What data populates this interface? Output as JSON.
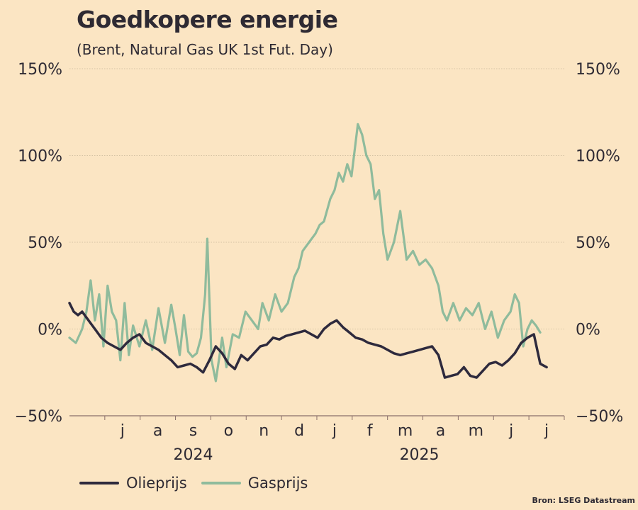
{
  "chart_data": {
    "type": "line",
    "title": "Goedkopere energie",
    "subtitle": "(Brent, Natural Gas UK 1st Fut. Day)",
    "source": "Bron: LSEG Datastream",
    "ylim": [
      -50,
      150
    ],
    "yticks": [
      {
        "value": 150,
        "label": "150%"
      },
      {
        "value": 100,
        "label": "100%"
      },
      {
        "value": 50,
        "label": "50%"
      },
      {
        "value": 0,
        "label": "0%"
      },
      {
        "value": -50,
        "label": "−50%"
      }
    ],
    "xlim": [
      2024.375,
      2025.5417
    ],
    "month_labels": [
      {
        "x": 2024.5,
        "label": "j"
      },
      {
        "x": 2024.5833,
        "label": "a"
      },
      {
        "x": 2024.6667,
        "label": "s"
      },
      {
        "x": 2024.75,
        "label": "o"
      },
      {
        "x": 2024.8333,
        "label": "n"
      },
      {
        "x": 2024.9167,
        "label": "d"
      },
      {
        "x": 2025.0,
        "label": "j"
      },
      {
        "x": 2025.0833,
        "label": "f"
      },
      {
        "x": 2025.1667,
        "label": "m"
      },
      {
        "x": 2025.25,
        "label": "a"
      },
      {
        "x": 2025.3333,
        "label": "m"
      },
      {
        "x": 2025.4167,
        "label": "j"
      },
      {
        "x": 2025.5,
        "label": "j"
      }
    ],
    "year_labels": [
      {
        "x": 2024.6667,
        "label": "2024"
      },
      {
        "x": 2025.2,
        "label": "2025"
      }
    ],
    "grid": true,
    "legend_position": "bottom-left",
    "series": [
      {
        "name": "Olieprijs",
        "color": "#2e2a3d",
        "x": [
          2024.375,
          2024.385,
          2024.395,
          2024.405,
          2024.42,
          2024.435,
          2024.45,
          2024.465,
          2024.48,
          2024.495,
          2024.51,
          2024.525,
          2024.54,
          2024.555,
          2024.57,
          2024.585,
          2024.6,
          2024.615,
          2024.63,
          2024.645,
          2024.66,
          2024.675,
          2024.69,
          2024.705,
          2024.72,
          2024.735,
          2024.75,
          2024.765,
          2024.78,
          2024.795,
          2024.81,
          2024.825,
          2024.84,
          2024.855,
          2024.87,
          2024.885,
          2024.9,
          2024.915,
          2024.93,
          2024.945,
          2024.96,
          2024.975,
          2024.99,
          2025.005,
          2025.02,
          2025.035,
          2025.05,
          2025.065,
          2025.08,
          2025.095,
          2025.11,
          2025.125,
          2025.14,
          2025.155,
          2025.17,
          2025.185,
          2025.2,
          2025.215,
          2025.23,
          2025.245,
          2025.26,
          2025.275,
          2025.29,
          2025.305,
          2025.32,
          2025.335,
          2025.35,
          2025.365,
          2025.38,
          2025.395,
          2025.41,
          2025.425,
          2025.44,
          2025.455,
          2025.47,
          2025.485,
          2025.5
        ],
        "values": [
          15,
          10,
          8,
          10,
          5,
          0,
          -5,
          -8,
          -10,
          -12,
          -8,
          -5,
          -3,
          -8,
          -10,
          -12,
          -15,
          -18,
          -22,
          -21,
          -20,
          -22,
          -25,
          -18,
          -10,
          -14,
          -20,
          -23,
          -15,
          -18,
          -14,
          -10,
          -9,
          -5,
          -6,
          -4,
          -3,
          -2,
          -1,
          -3,
          -5,
          0,
          3,
          5,
          1,
          -2,
          -5,
          -6,
          -8,
          -9,
          -10,
          -12,
          -14,
          -15,
          -14,
          -13,
          -12,
          -11,
          -10,
          -15,
          -28,
          -27,
          -26,
          -22,
          -27,
          -28,
          -24,
          -20,
          -19,
          -21,
          -18,
          -14,
          -8,
          -5,
          -3,
          -20,
          -22
        ]
      },
      {
        "name": "Gasprijs",
        "color": "#8fbb9c",
        "x": [
          2024.375,
          2024.39,
          2024.405,
          2024.415,
          2024.425,
          2024.435,
          2024.445,
          2024.455,
          2024.465,
          2024.475,
          2024.485,
          2024.495,
          2024.505,
          2024.515,
          2024.525,
          2024.54,
          2024.555,
          2024.57,
          2024.585,
          2024.6,
          2024.615,
          2024.625,
          2024.635,
          2024.645,
          2024.655,
          2024.665,
          2024.675,
          2024.685,
          2024.695,
          2024.7,
          2024.71,
          2024.72,
          2024.735,
          2024.745,
          2024.76,
          2024.775,
          2024.79,
          2024.805,
          2024.82,
          2024.83,
          2024.845,
          2024.86,
          2024.875,
          2024.89,
          2024.905,
          2024.915,
          2024.925,
          2024.94,
          2024.955,
          2024.965,
          2024.975,
          2024.99,
          2025.0,
          2025.01,
          2025.02,
          2025.03,
          2025.04,
          2025.05,
          2025.055,
          2025.065,
          2025.075,
          2025.085,
          2025.095,
          2025.105,
          2025.115,
          2025.125,
          2025.14,
          2025.155,
          2025.17,
          2025.185,
          2025.2,
          2025.215,
          2025.23,
          2025.245,
          2025.255,
          2025.265,
          2025.28,
          2025.295,
          2025.31,
          2025.325,
          2025.34,
          2025.355,
          2025.37,
          2025.385,
          2025.4,
          2025.415,
          2025.425,
          2025.435,
          2025.445,
          2025.455,
          2025.465,
          2025.475,
          2025.485
        ],
        "values": [
          -5,
          -8,
          0,
          10,
          28,
          5,
          20,
          -10,
          25,
          10,
          5,
          -18,
          15,
          -15,
          2,
          -10,
          5,
          -12,
          12,
          -8,
          14,
          0,
          -15,
          8,
          -13,
          -16,
          -14,
          -5,
          20,
          52,
          -18,
          -30,
          -5,
          -22,
          -3,
          -5,
          10,
          5,
          0,
          15,
          5,
          20,
          10,
          15,
          30,
          35,
          45,
          50,
          55,
          60,
          62,
          75,
          80,
          90,
          85,
          95,
          88,
          108,
          118,
          112,
          100,
          95,
          75,
          80,
          55,
          40,
          50,
          68,
          40,
          45,
          37,
          40,
          35,
          25,
          10,
          5,
          15,
          5,
          12,
          8,
          15,
          0,
          10,
          -5,
          5,
          10,
          20,
          15,
          -10,
          0,
          5,
          2,
          -2
        ]
      }
    ]
  }
}
